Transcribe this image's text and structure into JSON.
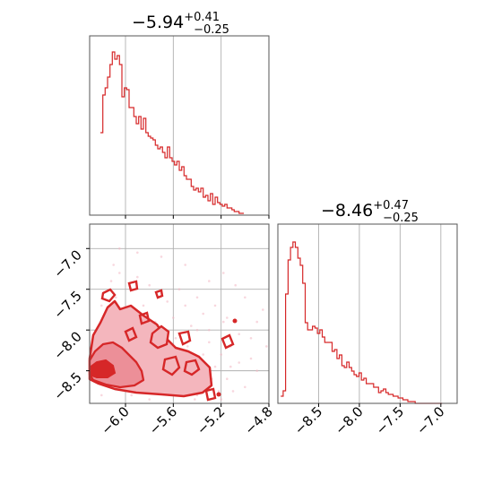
{
  "chart_data": [
    {
      "type": "histogram",
      "panel": "top-left",
      "title": {
        "median": "−5.94",
        "plus": "+0.41",
        "minus": "−0.25"
      },
      "x": [
        -6.2,
        -6.18,
        -6.16,
        -6.14,
        -6.12,
        -6.1,
        -6.08,
        -6.06,
        -6.04,
        -6.02,
        -6.0,
        -5.98,
        -5.96,
        -5.94,
        -5.92,
        -5.9,
        -5.88,
        -5.86,
        -5.84,
        -5.82,
        -5.8,
        -5.78,
        -5.76,
        -5.74,
        -5.72,
        -5.7,
        -5.68,
        -5.66,
        -5.64,
        -5.62,
        -5.6,
        -5.58,
        -5.56,
        -5.54,
        -5.52,
        -5.5,
        -5.48,
        -5.46,
        -5.44,
        -5.42,
        -5.4,
        -5.38,
        -5.36,
        -5.34,
        -5.32,
        -5.3,
        -5.28,
        -5.26,
        -5.24,
        -5.22,
        -5.2,
        -5.18,
        -5.16,
        -5.14,
        -5.12,
        -5.1,
        -5.08,
        -5.06,
        -5.04,
        -5.02
      ],
      "values": [
        0.46,
        0.67,
        0.71,
        0.77,
        0.84,
        0.91,
        0.87,
        0.89,
        0.84,
        0.66,
        0.71,
        0.7,
        0.6,
        0.6,
        0.55,
        0.51,
        0.55,
        0.48,
        0.54,
        0.46,
        0.44,
        0.43,
        0.42,
        0.39,
        0.37,
        0.38,
        0.35,
        0.32,
        0.38,
        0.32,
        0.3,
        0.28,
        0.3,
        0.25,
        0.27,
        0.22,
        0.2,
        0.2,
        0.16,
        0.14,
        0.15,
        0.13,
        0.15,
        0.1,
        0.11,
        0.08,
        0.12,
        0.06,
        0.1,
        0.07,
        0.06,
        0.05,
        0.06,
        0.04,
        0.04,
        0.03,
        0.02,
        0.02,
        0.01,
        0.01
      ],
      "xlim": [
        -6.3,
        -4.8
      ],
      "grid_x": [
        -6.0,
        -5.6,
        -5.2,
        -4.8
      ]
    },
    {
      "type": "scatter",
      "panel": "bottom-left",
      "x_ticks": [
        "−6.0",
        "−5.6",
        "−5.2",
        "−4.8"
      ],
      "x_tick_values": [
        -6.0,
        -5.6,
        -5.2,
        -4.8
      ],
      "y_ticks": [
        "−7.0",
        "−7.5",
        "−8.0",
        "−8.5"
      ],
      "y_tick_values": [
        -7.0,
        -7.5,
        -8.0,
        -8.5
      ],
      "xlim": [
        -6.3,
        -4.8
      ],
      "ylim": [
        -8.9,
        -6.7
      ],
      "points": [
        [
          -6.18,
          -8.4
        ],
        [
          -6.15,
          -8.45
        ],
        [
          -6.1,
          -8.6
        ],
        [
          -6.08,
          -8.3
        ],
        [
          -6.05,
          -8.55
        ],
        [
          -6.02,
          -8.7
        ],
        [
          -6.0,
          -8.25
        ],
        [
          -5.98,
          -8.4
        ],
        [
          -5.95,
          -8.6
        ],
        [
          -5.92,
          -8.15
        ],
        [
          -5.9,
          -8.5
        ],
        [
          -5.88,
          -8.35
        ],
        [
          -5.85,
          -8.7
        ],
        [
          -5.82,
          -8.2
        ],
        [
          -5.8,
          -8.5
        ],
        [
          -5.78,
          -8.05
        ],
        [
          -5.75,
          -8.65
        ],
        [
          -5.72,
          -8.3
        ],
        [
          -5.7,
          -8.45
        ],
        [
          -5.68,
          -8.0
        ],
        [
          -5.65,
          -8.6
        ],
        [
          -5.62,
          -8.25
        ],
        [
          -5.6,
          -8.5
        ],
        [
          -5.58,
          -8.1
        ],
        [
          -5.55,
          -8.7
        ],
        [
          -5.52,
          -8.35
        ],
        [
          -5.5,
          -8.55
        ],
        [
          -5.48,
          -8.2
        ],
        [
          -5.45,
          -8.65
        ],
        [
          -5.42,
          -8.4
        ],
        [
          -5.4,
          -8.0
        ],
        [
          -5.38,
          -8.55
        ],
        [
          -5.35,
          -8.3
        ],
        [
          -5.32,
          -8.7
        ],
        [
          -5.3,
          -8.15
        ],
        [
          -5.28,
          -8.6
        ],
        [
          -5.25,
          -8.45
        ],
        [
          -5.22,
          -8.75
        ],
        [
          -5.2,
          -8.3
        ],
        [
          -5.18,
          -7.9
        ],
        [
          -5.15,
          -8.6
        ],
        [
          -5.12,
          -8.2
        ],
        [
          -5.1,
          -8.75
        ],
        [
          -5.05,
          -8.4
        ],
        [
          -5.0,
          -7.6
        ],
        [
          -4.95,
          -8.1
        ],
        [
          -4.9,
          -8.5
        ],
        [
          -4.85,
          -7.75
        ],
        [
          -6.12,
          -7.4
        ],
        [
          -6.1,
          -7.2
        ],
        [
          -6.08,
          -7.6
        ],
        [
          -6.05,
          -7.3
        ],
        [
          -6.0,
          -7.8
        ],
        [
          -5.95,
          -7.5
        ],
        [
          -5.9,
          -7.35
        ],
        [
          -5.85,
          -7.7
        ],
        [
          -5.8,
          -7.45
        ],
        [
          -5.75,
          -7.9
        ],
        [
          -5.7,
          -7.55
        ],
        [
          -5.65,
          -7.65
        ],
        [
          -5.6,
          -7.85
        ],
        [
          -5.55,
          -7.5
        ],
        [
          -5.5,
          -7.7
        ],
        [
          -5.45,
          -7.95
        ],
        [
          -5.4,
          -7.6
        ],
        [
          -5.35,
          -7.8
        ],
        [
          -5.25,
          -7.7
        ],
        [
          -5.15,
          -7.85
        ],
        [
          -5.05,
          -8.05
        ],
        [
          -4.9,
          -7.9
        ],
        [
          -5.3,
          -8.0
        ],
        [
          -5.6,
          -8.8
        ],
        [
          -5.8,
          -8.85
        ],
        [
          -6.2,
          -8.8
        ],
        [
          -5.4,
          -8.8
        ],
        [
          -5.2,
          -8.85
        ],
        [
          -5.0,
          -8.7
        ],
        [
          -6.15,
          -7.95
        ],
        [
          -6.2,
          -7.7
        ],
        [
          -6.22,
          -8.1
        ],
        [
          -6.25,
          -8.3
        ],
        [
          -6.24,
          -8.55
        ],
        [
          -6.2,
          -8.65
        ],
        [
          -4.95,
          -8.35
        ],
        [
          -4.82,
          -8.2
        ],
        [
          -5.08,
          -7.45
        ],
        [
          -5.18,
          -7.3
        ],
        [
          -5.5,
          -7.2
        ],
        [
          -5.7,
          -7.1
        ],
        [
          -5.9,
          -7.05
        ],
        [
          -6.05,
          -7.0
        ],
        [
          -5.3,
          -7.4
        ],
        [
          -5.12,
          -8.45
        ],
        [
          -5.42,
          -8.85
        ],
        [
          -5.95,
          -8.8
        ]
      ]
    },
    {
      "type": "histogram",
      "panel": "bottom-right",
      "title": {
        "median": "−8.46",
        "plus": "+0.47",
        "minus": "−0.25"
      },
      "x": [
        -8.95,
        -8.92,
        -8.89,
        -8.86,
        -8.83,
        -8.8,
        -8.77,
        -8.74,
        -8.71,
        -8.68,
        -8.65,
        -8.62,
        -8.59,
        -8.56,
        -8.53,
        -8.5,
        -8.47,
        -8.44,
        -8.41,
        -8.38,
        -8.35,
        -8.32,
        -8.29,
        -8.26,
        -8.23,
        -8.2,
        -8.17,
        -8.14,
        -8.11,
        -8.08,
        -8.05,
        -8.02,
        -7.99,
        -7.96,
        -7.93,
        -7.9,
        -7.87,
        -7.84,
        -7.81,
        -7.78,
        -7.75,
        -7.72,
        -7.69,
        -7.66,
        -7.63,
        -7.6,
        -7.57,
        -7.54,
        -7.51,
        -7.48,
        -7.45,
        -7.42,
        -7.39,
        -7.36,
        -7.33,
        -7.3,
        -7.27,
        -7.24,
        -7.21,
        -7.18,
        -7.15,
        -7.12,
        -7.09,
        -7.06,
        -7.03,
        -7.0
      ],
      "values": [
        0.04,
        0.07,
        0.61,
        0.8,
        0.87,
        0.9,
        0.87,
        0.81,
        0.77,
        0.67,
        0.45,
        0.41,
        0.41,
        0.43,
        0.42,
        0.39,
        0.41,
        0.37,
        0.34,
        0.34,
        0.34,
        0.29,
        0.3,
        0.25,
        0.27,
        0.21,
        0.2,
        0.23,
        0.2,
        0.18,
        0.16,
        0.15,
        0.17,
        0.13,
        0.14,
        0.11,
        0.11,
        0.11,
        0.09,
        0.09,
        0.06,
        0.07,
        0.08,
        0.06,
        0.05,
        0.05,
        0.04,
        0.04,
        0.03,
        0.03,
        0.02,
        0.02,
        0.01,
        0.01,
        0.01,
        0.0,
        0.0,
        0.0,
        0.0,
        0.0,
        0.0,
        0.0,
        0.0,
        0.0,
        0.0,
        0.0
      ],
      "x_ticks": [
        "−8.5",
        "−8.0",
        "−7.5",
        "−7.0"
      ],
      "x_tick_values": [
        -8.5,
        -8.0,
        -7.5,
        -7.0
      ],
      "xlim": [
        -9.0,
        -6.8
      ]
    }
  ],
  "colors": {
    "line": "#d62728",
    "fill_dark": "#d62728",
    "fill_light": "#f4b6bd",
    "points": "#f2b6c2",
    "grid": "#b0b0b0"
  }
}
